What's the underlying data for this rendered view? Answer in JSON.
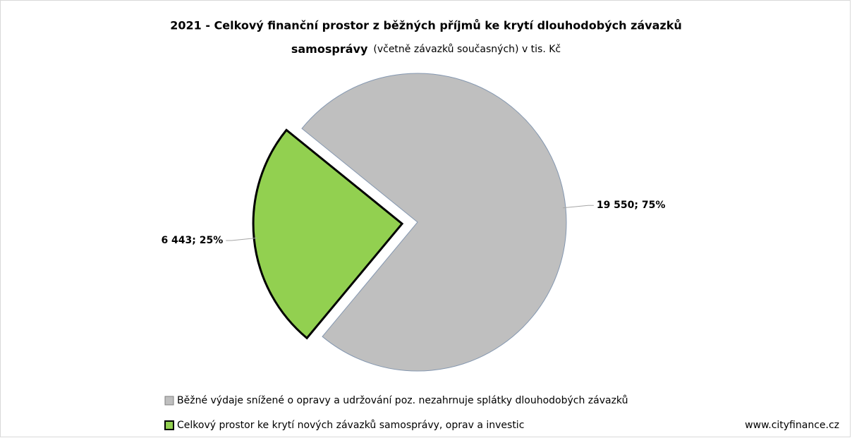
{
  "chart_data": {
    "type": "pie",
    "title": "2021 - Celkový finanční prostor z běžných příjmů ke krytí dlouhodobých závazků",
    "title_line2": "samosprávy",
    "subtitle": "(včetně závazků současných) v tis. Kč",
    "categories": [
      "Běžné výdaje snížené o opravy a udržování poz. nezahrnuje splátky dlouhodobých závazků",
      "Celkový prostor ke krytí nových závazků samosprávy, oprav a investic"
    ],
    "values": [
      19550,
      6443
    ],
    "value_labels": [
      "19 550; 75%",
      "6 443; 25%"
    ],
    "colors": [
      "#bfbfbf",
      "#92d050"
    ],
    "legend": "bottom",
    "source": "www.cityfinance.cz"
  }
}
